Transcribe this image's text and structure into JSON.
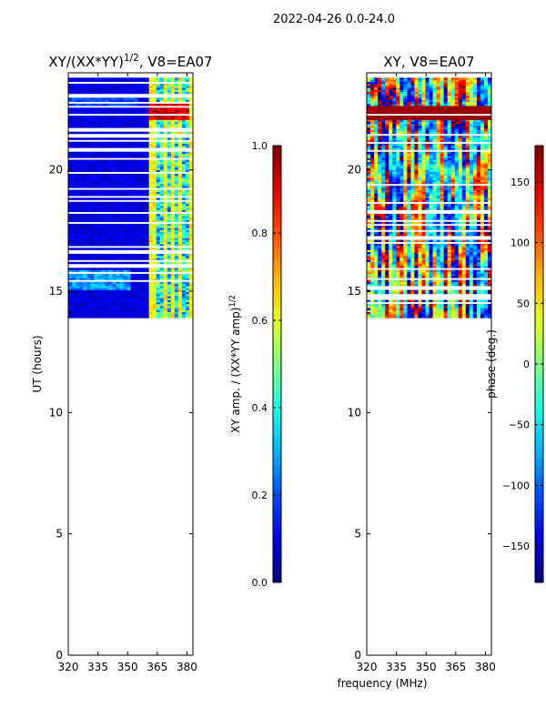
{
  "figure": {
    "suptitle": "2022-04-26 0.0-24.0",
    "shared_xlabel": "frequency (MHz)"
  },
  "chart_data": [
    {
      "type": "heatmap",
      "title_main": "XY/(XX*YY)",
      "title_exp": "1/2",
      "title_suffix": ", V8=EA07",
      "xlabel": "frequency (MHz)",
      "ylabel": "UT (hours)",
      "xlim": [
        320,
        383
      ],
      "ylim": [
        0,
        24
      ],
      "xticks": [
        320,
        335,
        350,
        365,
        380
      ],
      "yticks": [
        0,
        5,
        10,
        15,
        20
      ],
      "data_extent_ut": [
        13.9,
        23.8
      ],
      "bright_channels_mhz": [
        362.5,
        368.5,
        373,
        377,
        381.5
      ],
      "colorbar": {
        "label_main": "XY amp. / (XX*YY amp)",
        "label_exp": "1/2",
        "range": [
          0.0,
          1.0
        ],
        "ticks": [
          "0.0",
          "0.2",
          "0.4",
          "0.6",
          "0.8",
          "1.0"
        ],
        "colormap": "jet"
      }
    },
    {
      "type": "heatmap",
      "title": "XY, V8=EA07",
      "xlabel": "frequency (MHz)",
      "ylabel": "",
      "xlim": [
        320,
        383
      ],
      "ylim": [
        0,
        24
      ],
      "xticks": [
        320,
        335,
        350,
        365,
        380
      ],
      "yticks": [
        0,
        5,
        10,
        15,
        20
      ],
      "data_extent_ut": [
        13.9,
        23.8
      ],
      "colorbar": {
        "label": "phase (deg.)",
        "range": [
          -180,
          180
        ],
        "ticks": [
          "−150",
          "−100",
          "−50",
          "0",
          "50",
          "100",
          "150"
        ],
        "colormap": "jet"
      }
    }
  ]
}
